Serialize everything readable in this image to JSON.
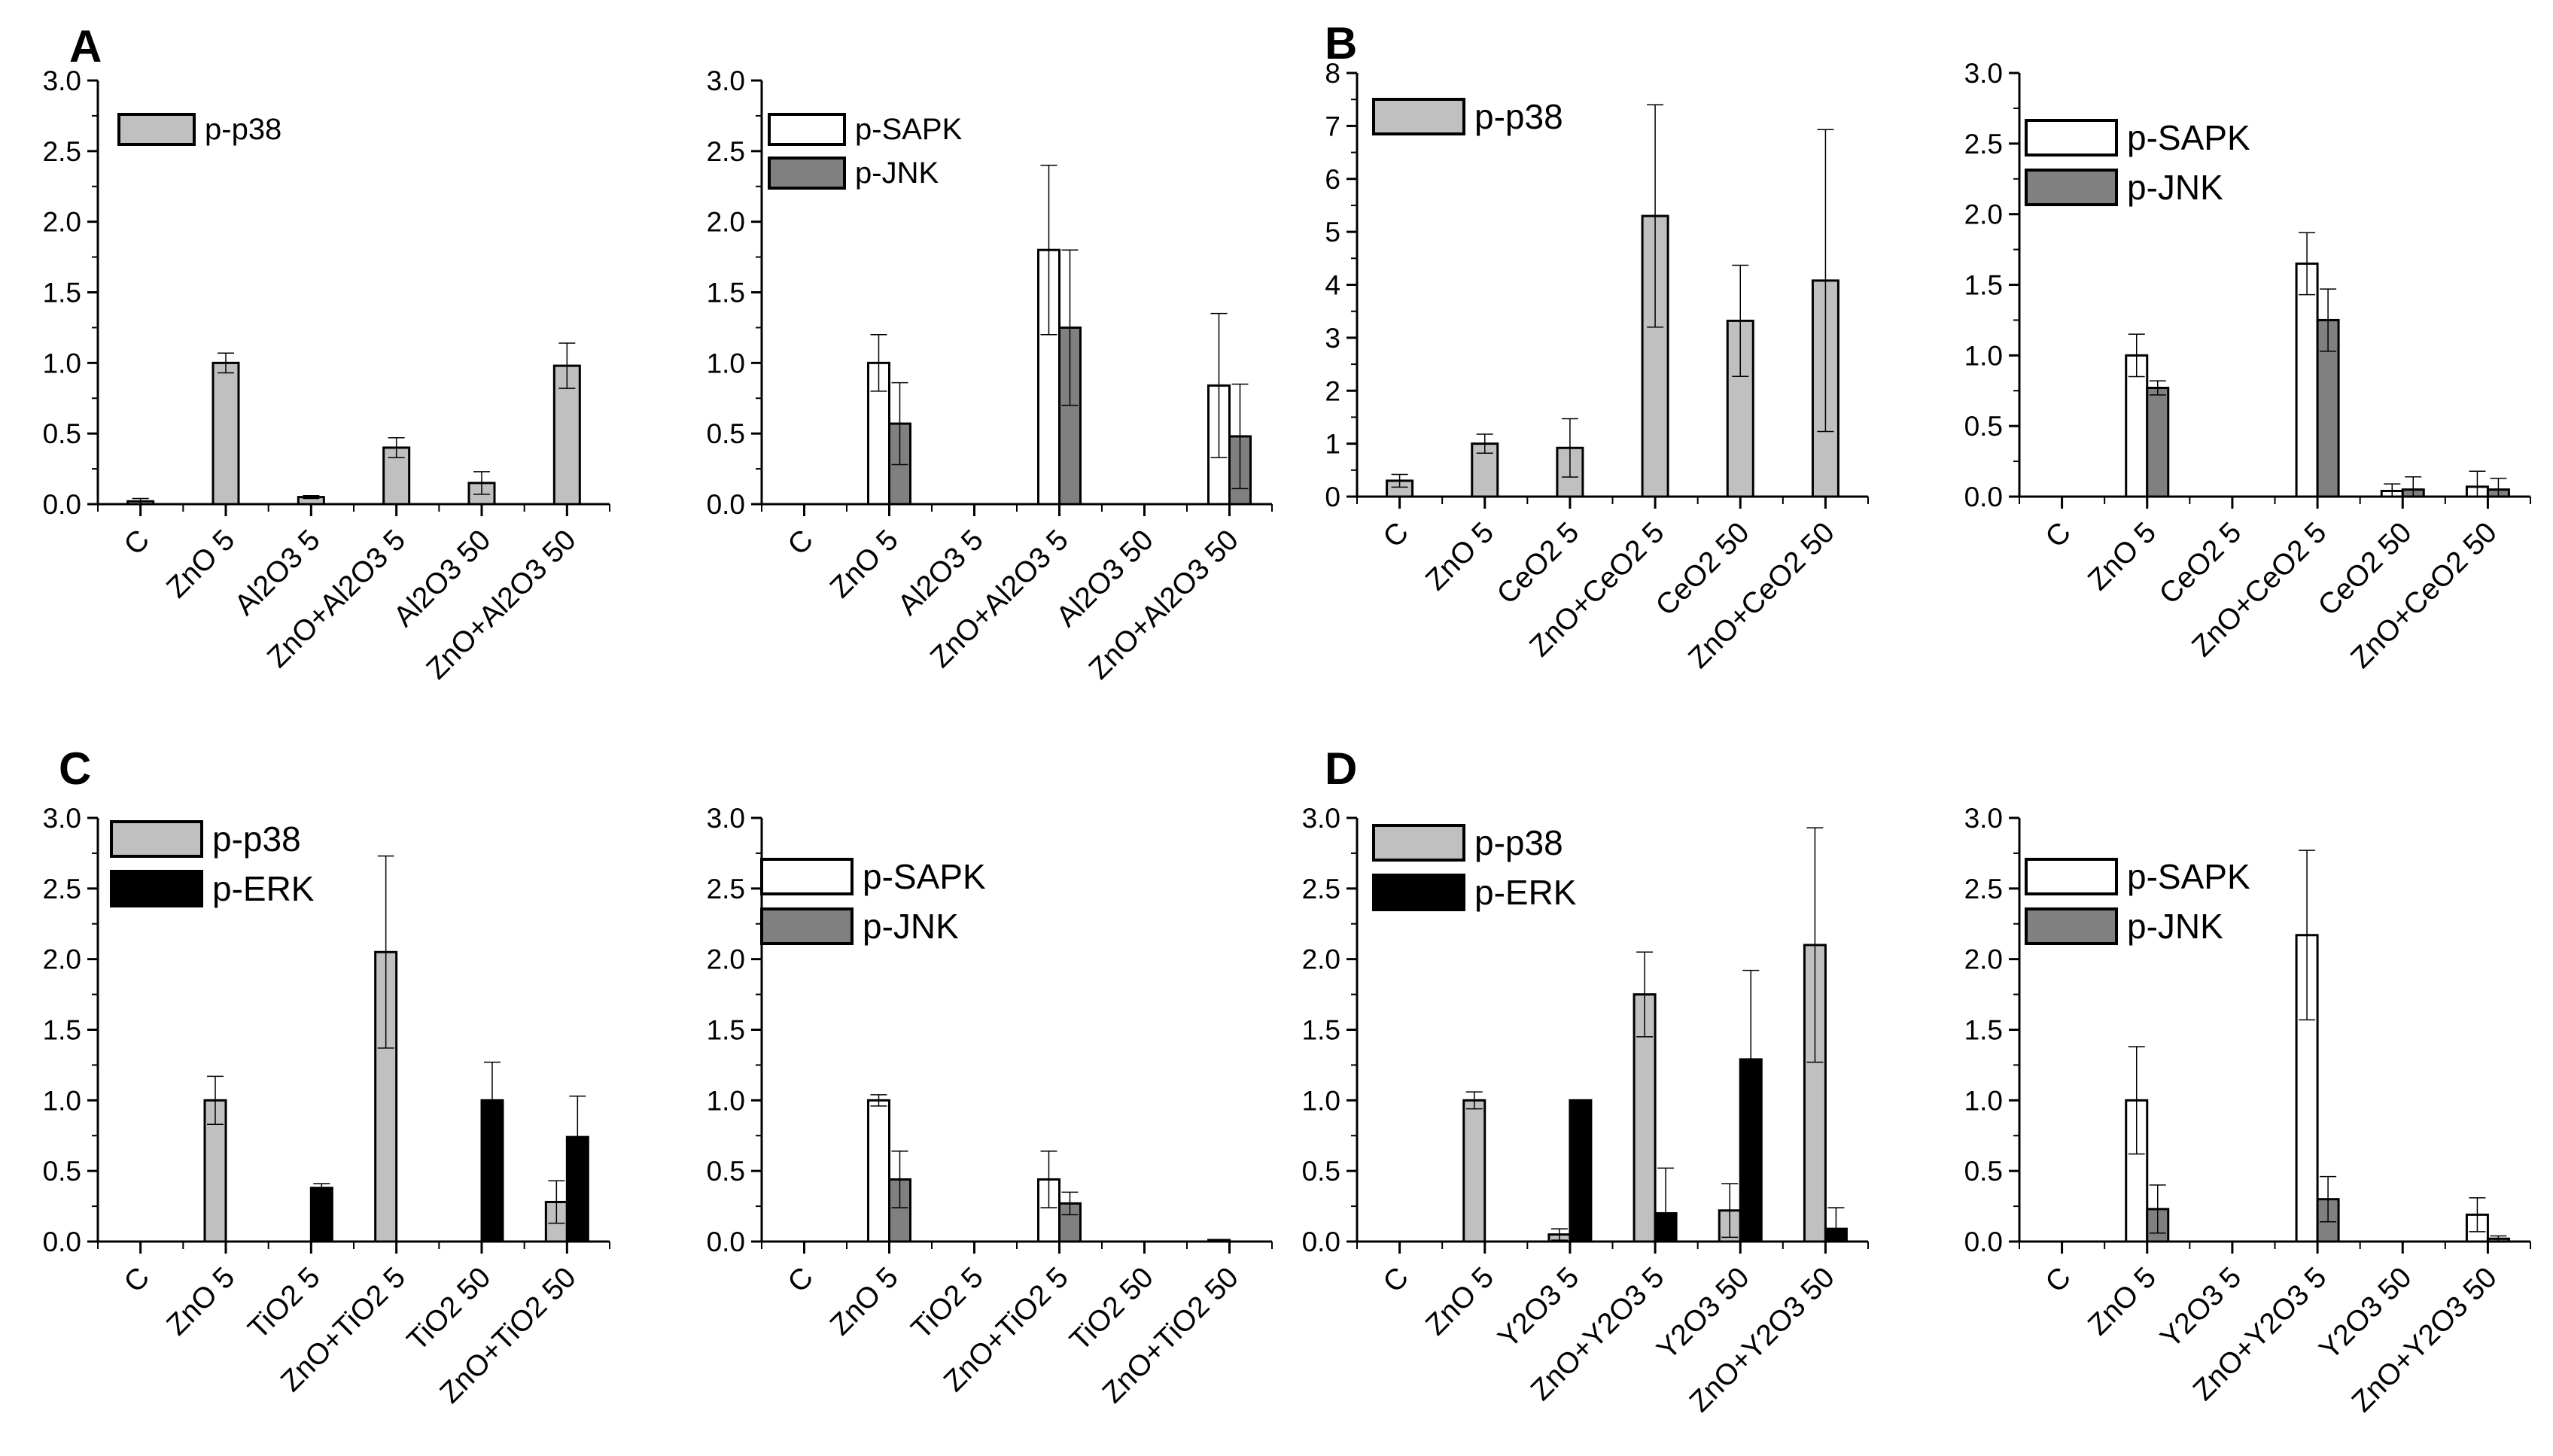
{
  "styles": {
    "light_gray": "#c0c0c0",
    "mid_gray": "#808080",
    "black": "#000000",
    "white": "#ffffff"
  },
  "panel_labels": [
    "A",
    "B",
    "C",
    "D"
  ],
  "chart_data": [
    {
      "type": "bar",
      "panel": "A",
      "categories": [
        "C",
        "ZnO 5",
        "Al2O3 5",
        "ZnO+Al2O3 5",
        "Al2O3 50",
        "ZnO+Al2O3 50"
      ],
      "ylim": [
        0,
        3.0
      ],
      "yticks": [
        "0.0",
        "0.5",
        "1.0",
        "1.5",
        "2.0",
        "2.5",
        "3.0"
      ],
      "series": [
        {
          "name": "p-p38",
          "style": "light",
          "values": [
            0.02,
            1.0,
            0.05,
            0.4,
            0.15,
            0.98
          ],
          "errors": [
            0.02,
            0.07,
            0.01,
            0.07,
            0.08,
            0.16
          ]
        }
      ],
      "legend": [
        "p-p38"
      ]
    },
    {
      "type": "bar",
      "panel": "A",
      "categories": [
        "C",
        "ZnO 5",
        "Al2O3 5",
        "ZnO+Al2O3 5",
        "Al2O3 50",
        "ZnO+Al2O3 50"
      ],
      "ylim": [
        0,
        3.0
      ],
      "yticks": [
        "0.0",
        "0.5",
        "1.0",
        "1.5",
        "2.0",
        "2.5",
        "3.0"
      ],
      "series": [
        {
          "name": "p-SAPK",
          "style": "white",
          "values": [
            0,
            1.0,
            0,
            1.8,
            0,
            0.84
          ],
          "errors": [
            0,
            0.2,
            0,
            0.6,
            0,
            0.51
          ]
        },
        {
          "name": "p-JNK",
          "style": "dark",
          "values": [
            0,
            0.57,
            0,
            1.25,
            0,
            0.48
          ],
          "errors": [
            0,
            0.29,
            0,
            0.55,
            0,
            0.37
          ]
        }
      ],
      "legend": [
        "p-SAPK",
        "p-JNK"
      ]
    },
    {
      "type": "bar",
      "panel": "B",
      "categories": [
        "C",
        "ZnO 5",
        "CeO2 5",
        "ZnO+CeO2 5",
        "CeO2 50",
        "ZnO+CeO2 50"
      ],
      "ylim": [
        0,
        8
      ],
      "yticks": [
        "0",
        "1",
        "2",
        "3",
        "4",
        "5",
        "6",
        "7",
        "8"
      ],
      "series": [
        {
          "name": "p-p38",
          "style": "light",
          "values": [
            0.3,
            1.0,
            0.92,
            5.3,
            3.32,
            4.08
          ],
          "errors": [
            0.12,
            0.18,
            0.55,
            2.1,
            1.05,
            2.85
          ]
        }
      ],
      "legend": [
        "p-p38"
      ]
    },
    {
      "type": "bar",
      "panel": "B",
      "categories": [
        "C",
        "ZnO 5",
        "CeO2 5",
        "ZnO+CeO2 5",
        "CeO2 50",
        "ZnO+CeO2 50"
      ],
      "ylim": [
        0,
        3.0
      ],
      "yticks": [
        "0.0",
        "0.5",
        "1.0",
        "1.5",
        "2.0",
        "2.5",
        "3.0"
      ],
      "series": [
        {
          "name": "p-SAPK",
          "style": "white",
          "values": [
            0,
            1.0,
            0,
            1.65,
            0.04,
            0.07
          ],
          "errors": [
            0,
            0.15,
            0,
            0.22,
            0.05,
            0.11
          ]
        },
        {
          "name": "p-JNK",
          "style": "dark",
          "values": [
            0,
            0.77,
            0,
            1.25,
            0.05,
            0.05
          ],
          "errors": [
            0,
            0.05,
            0,
            0.22,
            0.09,
            0.08
          ]
        }
      ],
      "legend": [
        "p-SAPK",
        "p-JNK"
      ]
    },
    {
      "type": "bar",
      "panel": "C",
      "categories": [
        "C",
        "ZnO 5",
        "TiO2 5",
        "ZnO+TiO2 5",
        "TiO2 50",
        "ZnO+TiO2 50"
      ],
      "ylim": [
        0,
        3.0
      ],
      "yticks": [
        "0.0",
        "0.5",
        "1.0",
        "1.5",
        "2.0",
        "2.5",
        "3.0"
      ],
      "series": [
        {
          "name": "p-p38",
          "style": "light",
          "values": [
            0,
            1.0,
            0,
            2.05,
            0,
            0.28
          ],
          "errors": [
            0,
            0.17,
            0,
            0.68,
            0,
            0.15
          ]
        },
        {
          "name": "p-ERK",
          "style": "black",
          "values": [
            0,
            0,
            0.38,
            0,
            1.0,
            0.74
          ],
          "errors": [
            0,
            0,
            0.03,
            0,
            0.27,
            0.29
          ]
        }
      ],
      "legend": [
        "p-p38",
        "p-ERK"
      ]
    },
    {
      "type": "bar",
      "panel": "C",
      "categories": [
        "C",
        "ZnO 5",
        "TiO2 5",
        "ZnO+TiO2 5",
        "TiO2 50",
        "ZnO+TiO2 50"
      ],
      "ylim": [
        0,
        3.0
      ],
      "yticks": [
        "0.0",
        "0.5",
        "1.0",
        "1.5",
        "2.0",
        "2.5",
        "3.0"
      ],
      "series": [
        {
          "name": "p-SAPK",
          "style": "white",
          "values": [
            0,
            1.0,
            0,
            0.44,
            0,
            0.01
          ],
          "errors": [
            0,
            0.04,
            0,
            0.2,
            0,
            0
          ]
        },
        {
          "name": "p-JNK",
          "style": "dark",
          "values": [
            0,
            0.44,
            0,
            0.27,
            0,
            0
          ],
          "errors": [
            0,
            0.2,
            0,
            0.08,
            0,
            0
          ]
        }
      ],
      "legend": [
        "p-SAPK",
        "p-JNK"
      ]
    },
    {
      "type": "bar",
      "panel": "D",
      "categories": [
        "C",
        "ZnO 5",
        "Y2O3 5",
        "ZnO+Y2O3 5",
        "Y2O3 50",
        "ZnO+Y2O3 50"
      ],
      "ylim": [
        0,
        3.0
      ],
      "yticks": [
        "0.0",
        "0.5",
        "1.0",
        "1.5",
        "2.0",
        "2.5",
        "3.0"
      ],
      "series": [
        {
          "name": "p-p38",
          "style": "light",
          "values": [
            0,
            1.0,
            0.05,
            1.75,
            0.22,
            2.1
          ],
          "errors": [
            0,
            0.06,
            0.04,
            0.3,
            0.19,
            0.83
          ]
        },
        {
          "name": "p-ERK",
          "style": "black",
          "values": [
            0,
            0,
            1.0,
            0.2,
            1.29,
            0.09
          ],
          "errors": [
            0,
            0,
            0,
            0.32,
            0.63,
            0.15
          ]
        }
      ],
      "legend": [
        "p-p38",
        "p-ERK"
      ]
    },
    {
      "type": "bar",
      "panel": "D",
      "categories": [
        "C",
        "ZnO 5",
        "Y2O3 5",
        "ZnO+Y2O3 5",
        "Y2O3 50",
        "ZnO+Y2O3 50"
      ],
      "ylim": [
        0,
        3.0
      ],
      "yticks": [
        "0.0",
        "0.5",
        "1.0",
        "1.5",
        "2.0",
        "2.5",
        "3.0"
      ],
      "series": [
        {
          "name": "p-SAPK",
          "style": "white",
          "values": [
            0,
            1.0,
            0,
            2.17,
            0,
            0.19
          ],
          "errors": [
            0,
            0.38,
            0,
            0.6,
            0,
            0.12
          ]
        },
        {
          "name": "p-JNK",
          "style": "dark",
          "values": [
            0,
            0.23,
            0,
            0.3,
            0,
            0.02
          ],
          "errors": [
            0,
            0.17,
            0,
            0.16,
            0,
            0.02
          ]
        }
      ],
      "legend": [
        "p-SAPK",
        "p-JNK"
      ]
    }
  ]
}
